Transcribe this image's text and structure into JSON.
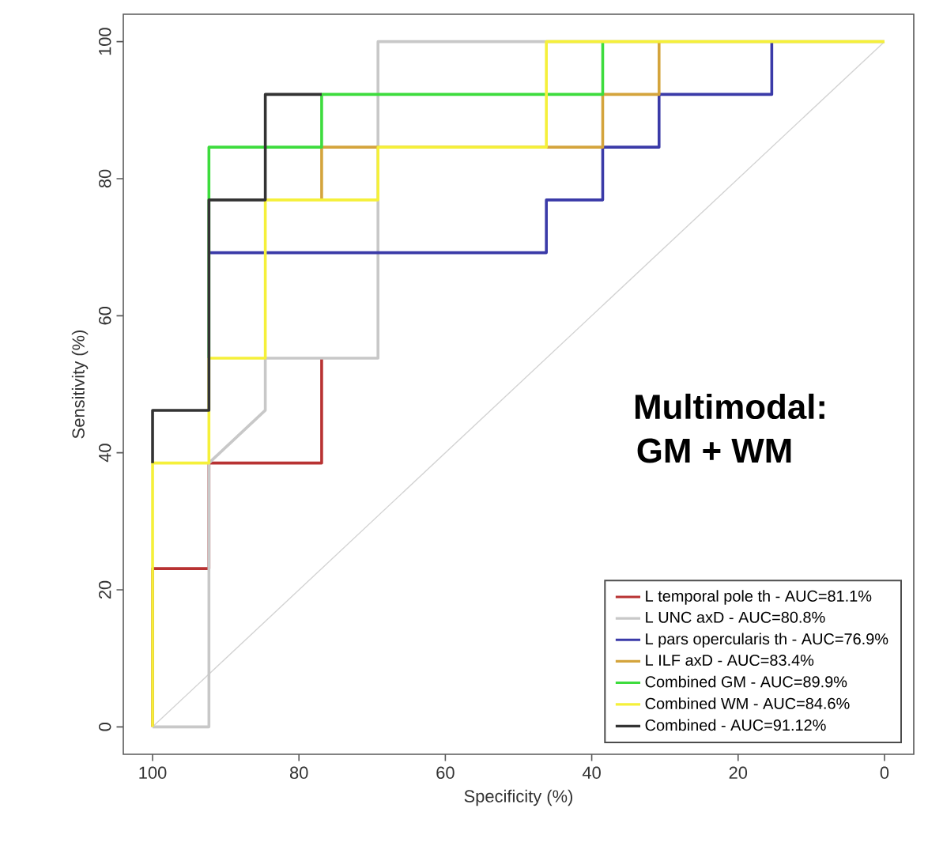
{
  "chart_data": {
    "type": "line",
    "xlabel": "Specificity (%)",
    "ylabel": "Sensitivity (%)",
    "xlim": [
      104,
      -4
    ],
    "ylim": [
      -4,
      104
    ],
    "xticks": [
      100,
      80,
      60,
      40,
      20,
      0
    ],
    "yticks": [
      0,
      20,
      40,
      60,
      80,
      100
    ],
    "grid": false,
    "legend": "bottom right",
    "marker": "none",
    "line_style": "solid",
    "annotations": [
      "Multimodal:",
      "GM + WM"
    ],
    "series": [
      {
        "color": "#d3d3d3",
        "x": [
          100,
          0
        ],
        "values": [
          0,
          100
        ]
      },
      {
        "name": "L temporal pole th - AUC=81.1%",
        "color": "#b83232",
        "x": [
          100,
          100,
          92.3,
          92.3,
          76.9,
          76.9
        ],
        "values": [
          0,
          23.1,
          23.1,
          38.5,
          38.5,
          53.8
        ]
      },
      {
        "name": "L UNC axD - AUC=80.8%",
        "color": "#c8c8c8",
        "x": [
          100,
          92.3,
          92.3,
          84.6,
          84.6,
          69.2,
          69.2,
          0
        ],
        "values": [
          0,
          0,
          38.5,
          46.2,
          53.8,
          53.8,
          100,
          100
        ]
      },
      {
        "name": "L pars opercularis th - AUC=76.9%",
        "color": "#3a3aa8",
        "x": [
          92.3,
          46.2,
          46.2,
          38.5,
          38.5,
          30.8,
          30.8,
          15.4,
          15.4
        ],
        "values": [
          69.2,
          69.2,
          76.9,
          76.9,
          84.6,
          84.6,
          92.3,
          92.3,
          100
        ]
      },
      {
        "name": "L ILF axD - AUC=83.4%",
        "color": "#d4a43c",
        "x": [
          76.9,
          76.9,
          38.5,
          38.5,
          30.8,
          30.8
        ],
        "values": [
          76.9,
          84.6,
          84.6,
          92.3,
          92.3,
          100
        ]
      },
      {
        "name": "Combined GM - AUC=89.9%",
        "color": "#3ddc3d",
        "x": [
          92.3,
          92.3,
          76.9,
          76.9,
          38.5,
          38.5
        ],
        "values": [
          53.8,
          84.6,
          84.6,
          92.3,
          92.3,
          100
        ]
      },
      {
        "name": "Combined WM - AUC=84.6%",
        "color": "#f5f03a",
        "x": [
          100,
          100,
          92.3,
          92.3,
          84.6,
          84.6,
          69.2,
          69.2,
          46.2,
          46.2,
          0
        ],
        "values": [
          0,
          38.5,
          38.5,
          53.8,
          53.8,
          76.9,
          76.9,
          84.6,
          84.6,
          100,
          100
        ]
      },
      {
        "name": "Combined - AUC=91.12%",
        "color": "#333333",
        "x": [
          100,
          100,
          92.3,
          92.3,
          84.6,
          84.6,
          76.9
        ],
        "values": [
          38.5,
          46.2,
          46.2,
          76.9,
          76.9,
          92.3,
          92.3
        ]
      }
    ]
  }
}
